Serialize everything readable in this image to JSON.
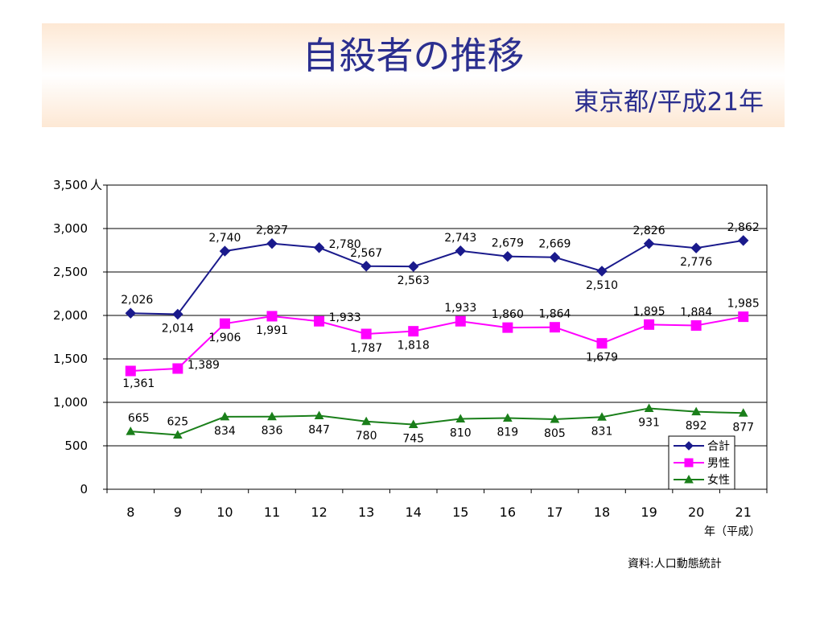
{
  "slide": {
    "title": "自殺者の推移",
    "subtitle": "東京都/平成21年",
    "source": "資料:人口動態統計"
  },
  "colors": {
    "title": "#2b2f8f",
    "total": "#1a1a8c",
    "male": "#ff00ff",
    "female": "#1a7f1a",
    "banner": "#fde8d4"
  },
  "chart_data": {
    "type": "line",
    "title": "",
    "categories": [
      "8",
      "9",
      "10",
      "11",
      "12",
      "13",
      "14",
      "15",
      "16",
      "17",
      "18",
      "19",
      "20",
      "21"
    ],
    "xlabel": "年（平成）",
    "ylabel": "人",
    "ylim": [
      0,
      3500
    ],
    "yticks": [
      0,
      500,
      1000,
      1500,
      2000,
      2500,
      3000,
      3500
    ],
    "ytick_labels": [
      "0",
      "500",
      "1,000",
      "1,500",
      "2,000",
      "2,500",
      "3,000",
      "3,500"
    ],
    "grid": true,
    "legend_position": "bottom-right",
    "series": [
      {
        "name": "合計",
        "marker": "diamond",
        "values": [
          2026,
          2014,
          2740,
          2827,
          2780,
          2567,
          2563,
          2743,
          2679,
          2669,
          2510,
          2826,
          2776,
          2862
        ],
        "labels": [
          "2,026",
          "2,014",
          "2,740",
          "2,827",
          "2,780",
          "2,567",
          "2,563",
          "2,743",
          "2,679",
          "2,669",
          "2,510",
          "2,826",
          "2,776",
          "2,862"
        ]
      },
      {
        "name": "男性",
        "marker": "square",
        "values": [
          1361,
          1389,
          1906,
          1991,
          1933,
          1787,
          1818,
          1933,
          1860,
          1864,
          1679,
          1895,
          1884,
          1985
        ],
        "labels": [
          "1,361",
          "1,389",
          "1,906",
          "1,991",
          "1,933",
          "1,787",
          "1,818",
          "1,933",
          "1,860",
          "1,864",
          "1,679",
          "1,895",
          "1,884",
          "1,985"
        ]
      },
      {
        "name": "女性",
        "marker": "triangle",
        "values": [
          665,
          625,
          834,
          836,
          847,
          780,
          745,
          810,
          819,
          805,
          831,
          931,
          892,
          877
        ],
        "labels": [
          "665",
          "625",
          "834",
          "836",
          "847",
          "780",
          "745",
          "810",
          "819",
          "805",
          "831",
          "931",
          "892",
          "877"
        ]
      }
    ]
  }
}
